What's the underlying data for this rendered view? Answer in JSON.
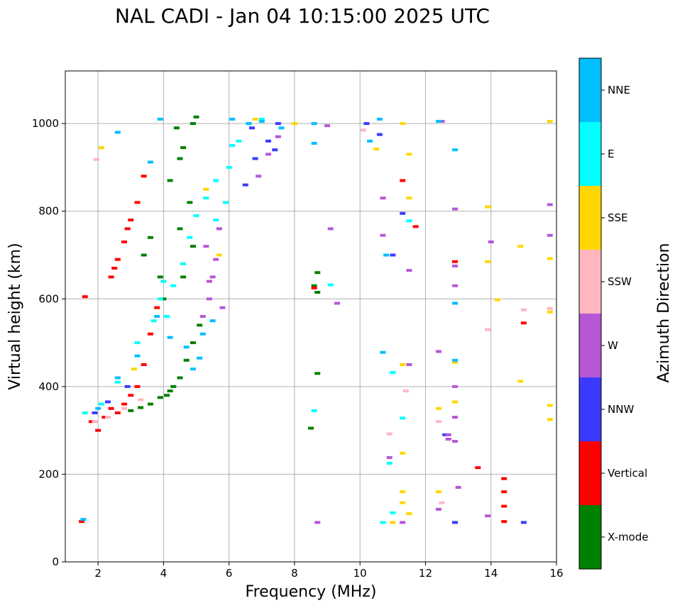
{
  "chart_data": {
    "type": "scatter",
    "title": "NAL CADI - Jan 04 10:15:00 2025 UTC",
    "xlabel": "Frequency (MHz)",
    "ylabel": "Virtual height (km)",
    "xlim": [
      1,
      16
    ],
    "ylim": [
      0,
      1120
    ],
    "x_ticks": [
      2,
      4,
      6,
      8,
      10,
      12,
      14,
      16
    ],
    "y_ticks": [
      0,
      200,
      400,
      600,
      800,
      1000
    ],
    "grid": true,
    "colorbar": {
      "title": "Azimuth Direction",
      "categories": [
        {
          "label": "X-mode",
          "color": "#008000"
        },
        {
          "label": "Vertical",
          "color": "#ff0000"
        },
        {
          "label": "NNW",
          "color": "#3a3aff"
        },
        {
          "label": "W",
          "color": "#b657d6"
        },
        {
          "label": "SSW",
          "color": "#ffb6c1"
        },
        {
          "label": "SSE",
          "color": "#ffd700"
        },
        {
          "label": "E",
          "color": "#00ffff"
        },
        {
          "label": "NNE",
          "color": "#00bfff"
        }
      ]
    },
    "series": [
      {
        "name": "X-mode",
        "points": [
          [
            3.0,
            345
          ],
          [
            3.3,
            352
          ],
          [
            3.6,
            360
          ],
          [
            3.9,
            375
          ],
          [
            4.2,
            390
          ],
          [
            4.5,
            420
          ],
          [
            4.7,
            460
          ],
          [
            4.9,
            500
          ],
          [
            5.1,
            540
          ],
          [
            4.0,
            600
          ],
          [
            4.6,
            650
          ],
          [
            4.9,
            720
          ],
          [
            4.5,
            760
          ],
          [
            4.8,
            820
          ],
          [
            4.2,
            870
          ],
          [
            4.5,
            920
          ],
          [
            4.6,
            945
          ],
          [
            4.4,
            990
          ],
          [
            4.9,
            1000
          ],
          [
            5.0,
            1015
          ],
          [
            3.6,
            740
          ],
          [
            3.4,
            700
          ],
          [
            3.9,
            650
          ],
          [
            8.5,
            305
          ],
          [
            8.7,
            430
          ],
          [
            8.7,
            660
          ],
          [
            8.7,
            615
          ],
          [
            8.6,
            630
          ],
          [
            4.1,
            380
          ],
          [
            4.3,
            400
          ]
        ]
      },
      {
        "name": "Vertical",
        "points": [
          [
            1.5,
            92
          ],
          [
            1.6,
            605
          ],
          [
            1.8,
            320
          ],
          [
            2.0,
            300
          ],
          [
            2.2,
            330
          ],
          [
            2.4,
            350
          ],
          [
            2.6,
            340
          ],
          [
            2.8,
            360
          ],
          [
            3.0,
            380
          ],
          [
            3.2,
            400
          ],
          [
            3.4,
            450
          ],
          [
            3.6,
            520
          ],
          [
            3.8,
            580
          ],
          [
            4.0,
            640
          ],
          [
            2.4,
            650
          ],
          [
            2.6,
            690
          ],
          [
            2.8,
            730
          ],
          [
            3.0,
            780
          ],
          [
            3.2,
            820
          ],
          [
            3.4,
            880
          ],
          [
            2.5,
            670
          ],
          [
            2.9,
            760
          ],
          [
            8.6,
            625
          ],
          [
            11.3,
            870
          ],
          [
            11.7,
            765
          ],
          [
            12.9,
            685
          ],
          [
            13.6,
            215
          ],
          [
            14.4,
            190
          ],
          [
            14.4,
            160
          ],
          [
            14.4,
            127
          ],
          [
            14.4,
            92
          ],
          [
            15.0,
            545
          ]
        ]
      },
      {
        "name": "NNW",
        "points": [
          [
            1.9,
            340
          ],
          [
            2.3,
            365
          ],
          [
            2.9,
            400
          ],
          [
            6.5,
            860
          ],
          [
            6.8,
            920
          ],
          [
            7.2,
            960
          ],
          [
            7.5,
            1000
          ],
          [
            6.7,
            990
          ],
          [
            7.4,
            940
          ],
          [
            10.6,
            975
          ],
          [
            11.3,
            795
          ],
          [
            12.6,
            290
          ],
          [
            12.9,
            90
          ],
          [
            15.0,
            90
          ],
          [
            11.0,
            700
          ],
          [
            10.2,
            1000
          ]
        ]
      },
      {
        "name": "W",
        "points": [
          [
            5.2,
            560
          ],
          [
            5.4,
            600
          ],
          [
            5.5,
            650
          ],
          [
            5.6,
            690
          ],
          [
            5.3,
            720
          ],
          [
            5.7,
            760
          ],
          [
            5.8,
            580
          ],
          [
            5.4,
            640
          ],
          [
            6.9,
            880
          ],
          [
            7.2,
            930
          ],
          [
            7.5,
            970
          ],
          [
            10.7,
            830
          ],
          [
            10.7,
            745
          ],
          [
            11.5,
            450
          ],
          [
            11.5,
            665
          ],
          [
            12.4,
            480
          ],
          [
            12.4,
            120
          ],
          [
            12.7,
            280
          ],
          [
            12.7,
            290
          ],
          [
            12.9,
            275
          ],
          [
            12.9,
            330
          ],
          [
            12.9,
            400
          ],
          [
            12.9,
            590
          ],
          [
            12.9,
            630
          ],
          [
            12.9,
            675
          ],
          [
            12.9,
            805
          ],
          [
            12.5,
            1005
          ],
          [
            13.9,
            105
          ],
          [
            14.0,
            730
          ],
          [
            15.8,
            815
          ],
          [
            15.8,
            745
          ],
          [
            9.0,
            995
          ],
          [
            9.3,
            590
          ],
          [
            9.1,
            760
          ],
          [
            8.7,
            90
          ],
          [
            10.9,
            238
          ],
          [
            11.3,
            90
          ],
          [
            13.0,
            170
          ]
        ]
      },
      {
        "name": "SSW",
        "points": [
          [
            1.9,
            320
          ],
          [
            2.3,
            330
          ],
          [
            2.8,
            350
          ],
          [
            3.3,
            370
          ],
          [
            1.95,
            918
          ],
          [
            10.9,
            292
          ],
          [
            11.4,
            390
          ],
          [
            12.5,
            135
          ],
          [
            12.4,
            320
          ],
          [
            15.0,
            575
          ],
          [
            15.8,
            578
          ],
          [
            10.1,
            985
          ],
          [
            13.9,
            530
          ]
        ]
      },
      {
        "name": "SSE",
        "points": [
          [
            2.1,
            945
          ],
          [
            3.1,
            440
          ],
          [
            5.7,
            700
          ],
          [
            5.3,
            850
          ],
          [
            6.8,
            1010
          ],
          [
            11.3,
            1000
          ],
          [
            11.5,
            930
          ],
          [
            11.5,
            830
          ],
          [
            11.3,
            450
          ],
          [
            11.3,
            160
          ],
          [
            11.3,
            135
          ],
          [
            11.5,
            110
          ],
          [
            11.0,
            90
          ],
          [
            12.4,
            350
          ],
          [
            12.4,
            160
          ],
          [
            12.9,
            455
          ],
          [
            12.9,
            365
          ],
          [
            13.9,
            810
          ],
          [
            13.9,
            685
          ],
          [
            14.2,
            598
          ],
          [
            14.9,
            720
          ],
          [
            14.9,
            412
          ],
          [
            15.8,
            1005
          ],
          [
            15.8,
            692
          ],
          [
            15.8,
            570
          ],
          [
            15.8,
            357
          ],
          [
            15.8,
            325
          ],
          [
            11.3,
            248
          ],
          [
            8.0,
            1000
          ],
          [
            10.5,
            942
          ]
        ]
      },
      {
        "name": "E",
        "points": [
          [
            1.6,
            340
          ],
          [
            2.1,
            360
          ],
          [
            2.6,
            410
          ],
          [
            3.2,
            500
          ],
          [
            3.7,
            550
          ],
          [
            3.9,
            600
          ],
          [
            4.1,
            560
          ],
          [
            4.3,
            630
          ],
          [
            4.6,
            680
          ],
          [
            4.8,
            740
          ],
          [
            5.0,
            790
          ],
          [
            5.3,
            830
          ],
          [
            5.6,
            870
          ],
          [
            6.0,
            900
          ],
          [
            6.3,
            960
          ],
          [
            6.6,
            1000
          ],
          [
            7.0,
            1010
          ],
          [
            4.0,
            640
          ],
          [
            5.6,
            780
          ],
          [
            6.1,
            950
          ],
          [
            10.7,
            90
          ],
          [
            11.0,
            112
          ],
          [
            10.9,
            225
          ],
          [
            11.3,
            328
          ],
          [
            11.0,
            432
          ],
          [
            11.5,
            778
          ],
          [
            8.6,
            345
          ],
          [
            9.1,
            632
          ],
          [
            5.9,
            820
          ]
        ]
      },
      {
        "name": "NNE",
        "points": [
          [
            1.55,
            97
          ],
          [
            2.0,
            350
          ],
          [
            2.6,
            420
          ],
          [
            3.2,
            470
          ],
          [
            3.8,
            560
          ],
          [
            4.2,
            512
          ],
          [
            4.7,
            490
          ],
          [
            4.9,
            440
          ],
          [
            5.1,
            465
          ],
          [
            5.2,
            520
          ],
          [
            5.5,
            550
          ],
          [
            6.1,
            1010
          ],
          [
            6.6,
            1000
          ],
          [
            7.0,
            1005
          ],
          [
            7.6,
            990
          ],
          [
            8.6,
            955
          ],
          [
            8.6,
            1000
          ],
          [
            10.3,
            960
          ],
          [
            10.6,
            1010
          ],
          [
            10.8,
            700
          ],
          [
            10.7,
            478
          ],
          [
            12.9,
            940
          ],
          [
            12.9,
            460
          ],
          [
            12.4,
            1005
          ],
          [
            12.9,
            590
          ],
          [
            2.6,
            980
          ],
          [
            3.9,
            1010
          ],
          [
            3.6,
            912
          ]
        ]
      }
    ]
  }
}
